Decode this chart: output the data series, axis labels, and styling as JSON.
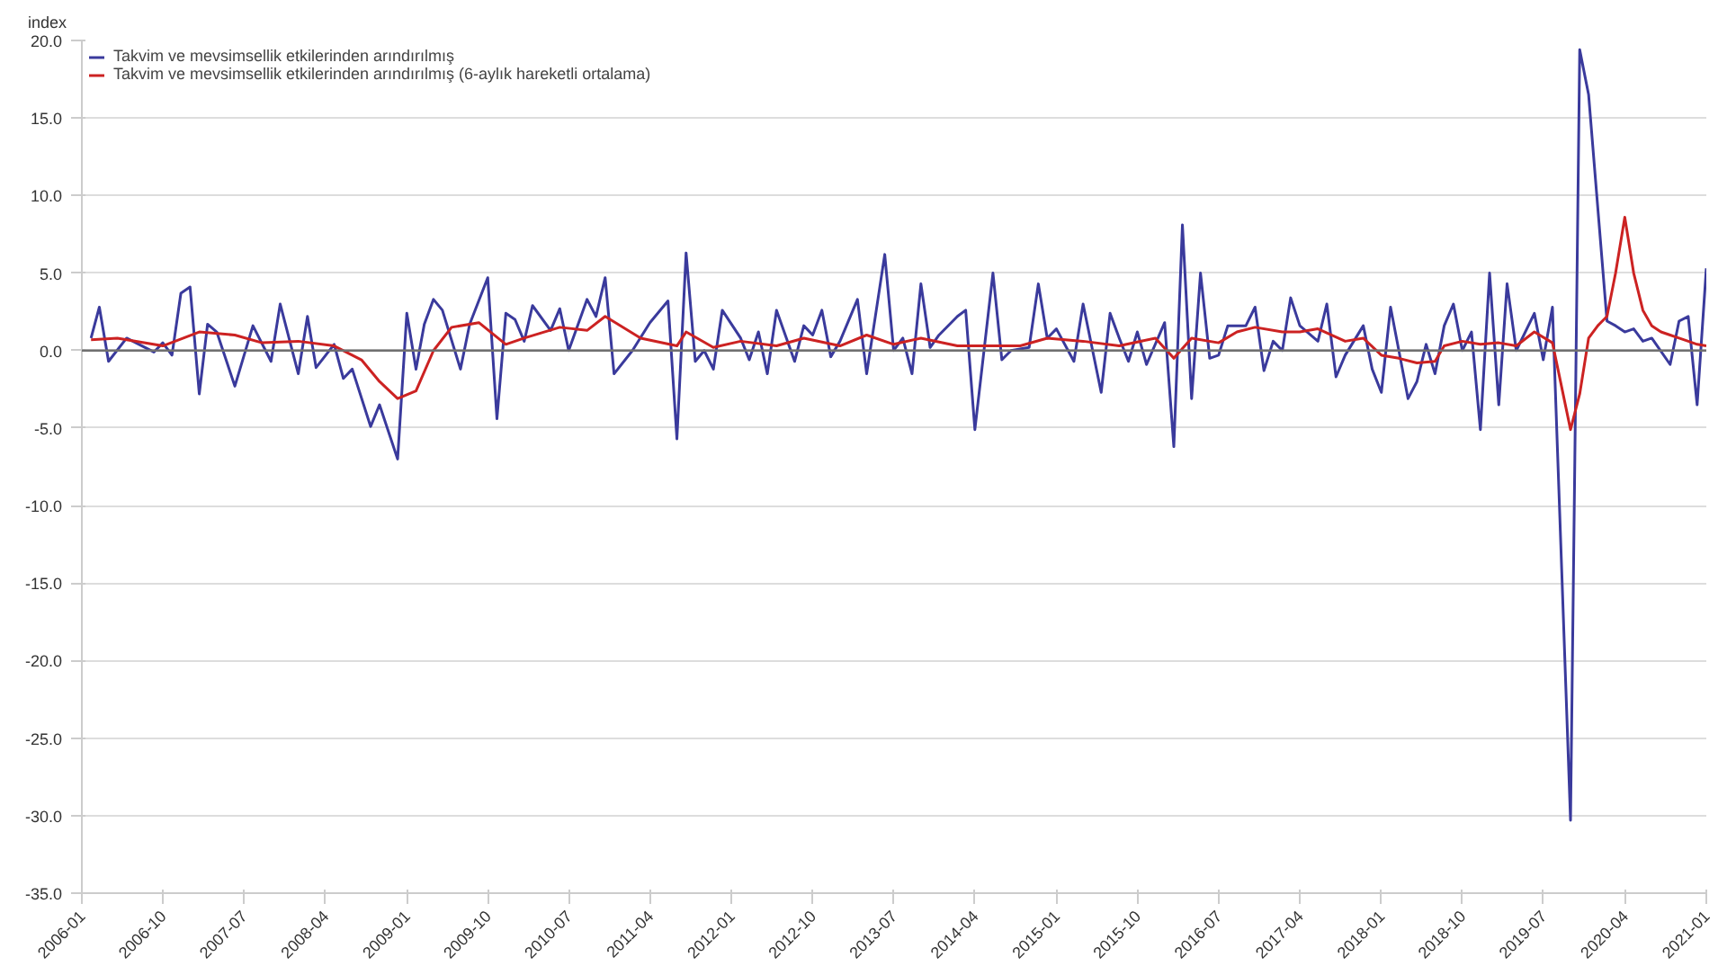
{
  "chart_data": {
    "type": "line",
    "ylabel": "index",
    "xlim": [
      "2006-01",
      "2021-01"
    ],
    "xticks": [
      "2006-01",
      "2006-10",
      "2007-07",
      "2008-04",
      "2009-01",
      "2009-10",
      "2010-07",
      "2011-04",
      "2012-01",
      "2012-10",
      "2013-07",
      "2014-04",
      "2015-01",
      "2015-10",
      "2016-07",
      "2017-04",
      "2018-01",
      "2018-10",
      "2019-07",
      "2020-04",
      "2021-01"
    ],
    "ylim": [
      -35,
      20
    ],
    "yticks": [
      {
        "value": -35,
        "label": "-35.0"
      },
      {
        "value": -30,
        "label": "-30.0"
      },
      {
        "value": -25,
        "label": "-25.0"
      },
      {
        "value": -20,
        "label": "-20.0"
      },
      {
        "value": -15,
        "label": "-15.0"
      },
      {
        "value": -10,
        "label": "-10.0"
      },
      {
        "value": -5,
        "label": "-5.0"
      },
      {
        "value": 0,
        "label": "0.0"
      },
      {
        "value": 5,
        "label": "5.0"
      },
      {
        "value": 10,
        "label": "10.0"
      },
      {
        "value": 15,
        "label": "15.0"
      },
      {
        "value": 20,
        "label": "20.0"
      }
    ],
    "grid": "y",
    "legend": "top left",
    "line_style": "solid",
    "ref_lines": [
      {
        "axis": "y",
        "value": 0,
        "color": "#707070"
      }
    ],
    "series": [
      {
        "name": "Takvim ve mevsimsellik etkilerinden arındırılmış",
        "color": "#3a3a9c",
        "x": [
          "2006-02",
          "2006-03",
          "2006-04",
          "2006-06",
          "2006-09",
          "2006-10",
          "2006-11",
          "2006-12",
          "2007-01",
          "2007-02",
          "2007-03",
          "2007-04",
          "2007-06",
          "2007-08",
          "2007-10",
          "2007-11",
          "2008-01",
          "2008-02",
          "2008-03",
          "2008-05",
          "2008-06",
          "2008-07",
          "2008-09",
          "2008-10",
          "2008-12",
          "2009-01",
          "2009-02",
          "2009-03",
          "2009-04",
          "2009-05",
          "2009-07",
          "2009-08",
          "2009-10",
          "2009-11",
          "2009-12",
          "2010-01",
          "2010-02",
          "2010-03",
          "2010-05",
          "2010-06",
          "2010-07",
          "2010-09",
          "2010-10",
          "2010-11",
          "2010-12",
          "2011-02",
          "2011-04",
          "2011-06",
          "2011-07",
          "2011-08",
          "2011-09",
          "2011-10",
          "2011-11",
          "2011-12",
          "2012-02",
          "2012-03",
          "2012-04",
          "2012-05",
          "2012-06",
          "2012-08",
          "2012-09",
          "2012-10",
          "2012-11",
          "2012-12",
          "2013-01",
          "2013-03",
          "2013-04",
          "2013-06",
          "2013-07",
          "2013-08",
          "2013-09",
          "2013-10",
          "2013-11",
          "2013-12",
          "2014-02",
          "2014-03",
          "2014-04",
          "2014-06",
          "2014-07",
          "2014-08",
          "2014-10",
          "2014-11",
          "2014-12",
          "2015-01",
          "2015-03",
          "2015-04",
          "2015-05",
          "2015-06",
          "2015-07",
          "2015-08",
          "2015-09",
          "2015-10",
          "2015-11",
          "2016-01",
          "2016-02",
          "2016-03",
          "2016-04",
          "2016-05",
          "2016-06",
          "2016-07",
          "2016-08",
          "2016-10",
          "2016-11",
          "2016-12",
          "2017-01",
          "2017-02",
          "2017-03",
          "2017-04",
          "2017-06",
          "2017-07",
          "2017-08",
          "2017-09",
          "2017-11",
          "2017-12",
          "2018-01",
          "2018-02",
          "2018-03",
          "2018-04",
          "2018-05",
          "2018-06",
          "2018-07",
          "2018-08",
          "2018-09",
          "2018-10",
          "2018-11",
          "2018-12",
          "2019-01",
          "2019-02",
          "2019-03",
          "2019-04",
          "2019-06",
          "2019-07",
          "2019-08",
          "2019-10",
          "2019-11",
          "2019-12",
          "2020-02",
          "2020-03",
          "2020-04",
          "2020-05",
          "2020-06",
          "2020-07",
          "2020-09",
          "2020-10",
          "2020-11",
          "2020-12",
          "2021-01"
        ],
        "values": [
          0.8,
          2.8,
          -0.7,
          0.8,
          -0.1,
          0.5,
          -0.3,
          3.7,
          4.1,
          -2.8,
          1.7,
          1.2,
          -2.3,
          1.6,
          -0.7,
          3.0,
          -1.5,
          2.2,
          -1.1,
          0.4,
          -1.8,
          -1.2,
          -4.9,
          -3.5,
          -7.0,
          2.4,
          -1.2,
          1.7,
          3.3,
          2.6,
          -1.2,
          1.7,
          4.7,
          -4.4,
          2.4,
          2.0,
          0.6,
          2.9,
          1.3,
          2.7,
          0.0,
          3.3,
          2.2,
          4.7,
          -1.5,
          0.0,
          1.8,
          3.2,
          -5.7,
          6.3,
          -0.7,
          0.0,
          -1.2,
          2.6,
          0.8,
          -0.6,
          1.2,
          -1.5,
          2.6,
          -0.7,
          1.6,
          1.0,
          2.6,
          -0.4,
          0.6,
          3.3,
          -1.5,
          6.2,
          0.0,
          0.8,
          -1.5,
          4.3,
          0.2,
          1.0,
          2.2,
          2.6,
          -5.1,
          5.0,
          -0.6,
          0.0,
          0.2,
          4.3,
          0.8,
          1.4,
          -0.7,
          3.0,
          0.2,
          -2.7,
          2.4,
          0.8,
          -0.7,
          1.2,
          -0.9,
          1.8,
          -6.2,
          8.1,
          -3.1,
          5.0,
          -0.5,
          -0.3,
          1.6,
          1.6,
          2.8,
          -1.3,
          0.6,
          0.0,
          3.4,
          1.6,
          0.6,
          3.0,
          -1.7,
          -0.3,
          1.6,
          -1.2,
          -2.7,
          2.8,
          0.0,
          -3.1,
          -2.0,
          0.4,
          -1.5,
          1.6,
          3.0,
          0.0,
          1.2,
          -5.1,
          5.0,
          -3.5,
          4.3,
          0.0,
          2.4,
          -0.6,
          2.8,
          -30.3,
          19.4,
          16.5,
          1.9,
          1.6,
          1.2,
          1.4,
          0.6,
          0.8,
          -0.9,
          1.9,
          2.2,
          -3.5,
          5.3
        ]
      },
      {
        "name": "Takvim ve mevsimsellik etkilerinden arındırılmış (6-aylık hareketli ortalama)",
        "color": "#cc2222",
        "x": [
          "2006-02",
          "2006-05",
          "2006-10",
          "2007-02",
          "2007-06",
          "2007-09",
          "2008-01",
          "2008-05",
          "2008-08",
          "2008-10",
          "2008-12",
          "2009-02",
          "2009-04",
          "2009-06",
          "2009-09",
          "2009-12",
          "2010-02",
          "2010-06",
          "2010-09",
          "2010-11",
          "2011-03",
          "2011-07",
          "2011-08",
          "2011-11",
          "2012-02",
          "2012-06",
          "2012-09",
          "2013-01",
          "2013-04",
          "2013-07",
          "2013-10",
          "2014-02",
          "2014-06",
          "2014-09",
          "2014-12",
          "2015-04",
          "2015-08",
          "2015-12",
          "2016-02",
          "2016-04",
          "2016-07",
          "2016-09",
          "2016-11",
          "2017-02",
          "2017-04",
          "2017-06",
          "2017-09",
          "2017-11",
          "2018-01",
          "2018-03",
          "2018-05",
          "2018-07",
          "2018-08",
          "2018-10",
          "2018-12",
          "2019-02",
          "2019-04",
          "2019-06",
          "2019-08",
          "2019-10",
          "2019-11",
          "2019-12",
          "2020-01",
          "2020-02",
          "2020-03",
          "2020-04",
          "2020-05",
          "2020-06",
          "2020-07",
          "2020-08",
          "2020-09",
          "2020-10",
          "2020-11",
          "2020-12",
          "2021-01"
        ],
        "values": [
          0.7,
          0.8,
          0.3,
          1.2,
          1.0,
          0.5,
          0.6,
          0.3,
          -0.6,
          -2.0,
          -3.1,
          -2.6,
          0.0,
          1.5,
          1.8,
          0.4,
          0.8,
          1.5,
          1.3,
          2.2,
          0.8,
          0.3,
          1.2,
          0.2,
          0.6,
          0.3,
          0.8,
          0.3,
          1.0,
          0.4,
          0.8,
          0.3,
          0.3,
          0.3,
          0.8,
          0.6,
          0.3,
          0.8,
          -0.5,
          0.8,
          0.5,
          1.2,
          1.5,
          1.2,
          1.2,
          1.4,
          0.6,
          0.8,
          -0.3,
          -0.5,
          -0.8,
          -0.7,
          0.3,
          0.6,
          0.4,
          0.5,
          0.3,
          1.2,
          0.5,
          -5.1,
          -2.8,
          0.8,
          1.6,
          2.2,
          5.0,
          8.6,
          5.0,
          2.6,
          1.6,
          1.2,
          1.0,
          0.8,
          0.6,
          0.4,
          0.3
        ]
      }
    ]
  }
}
